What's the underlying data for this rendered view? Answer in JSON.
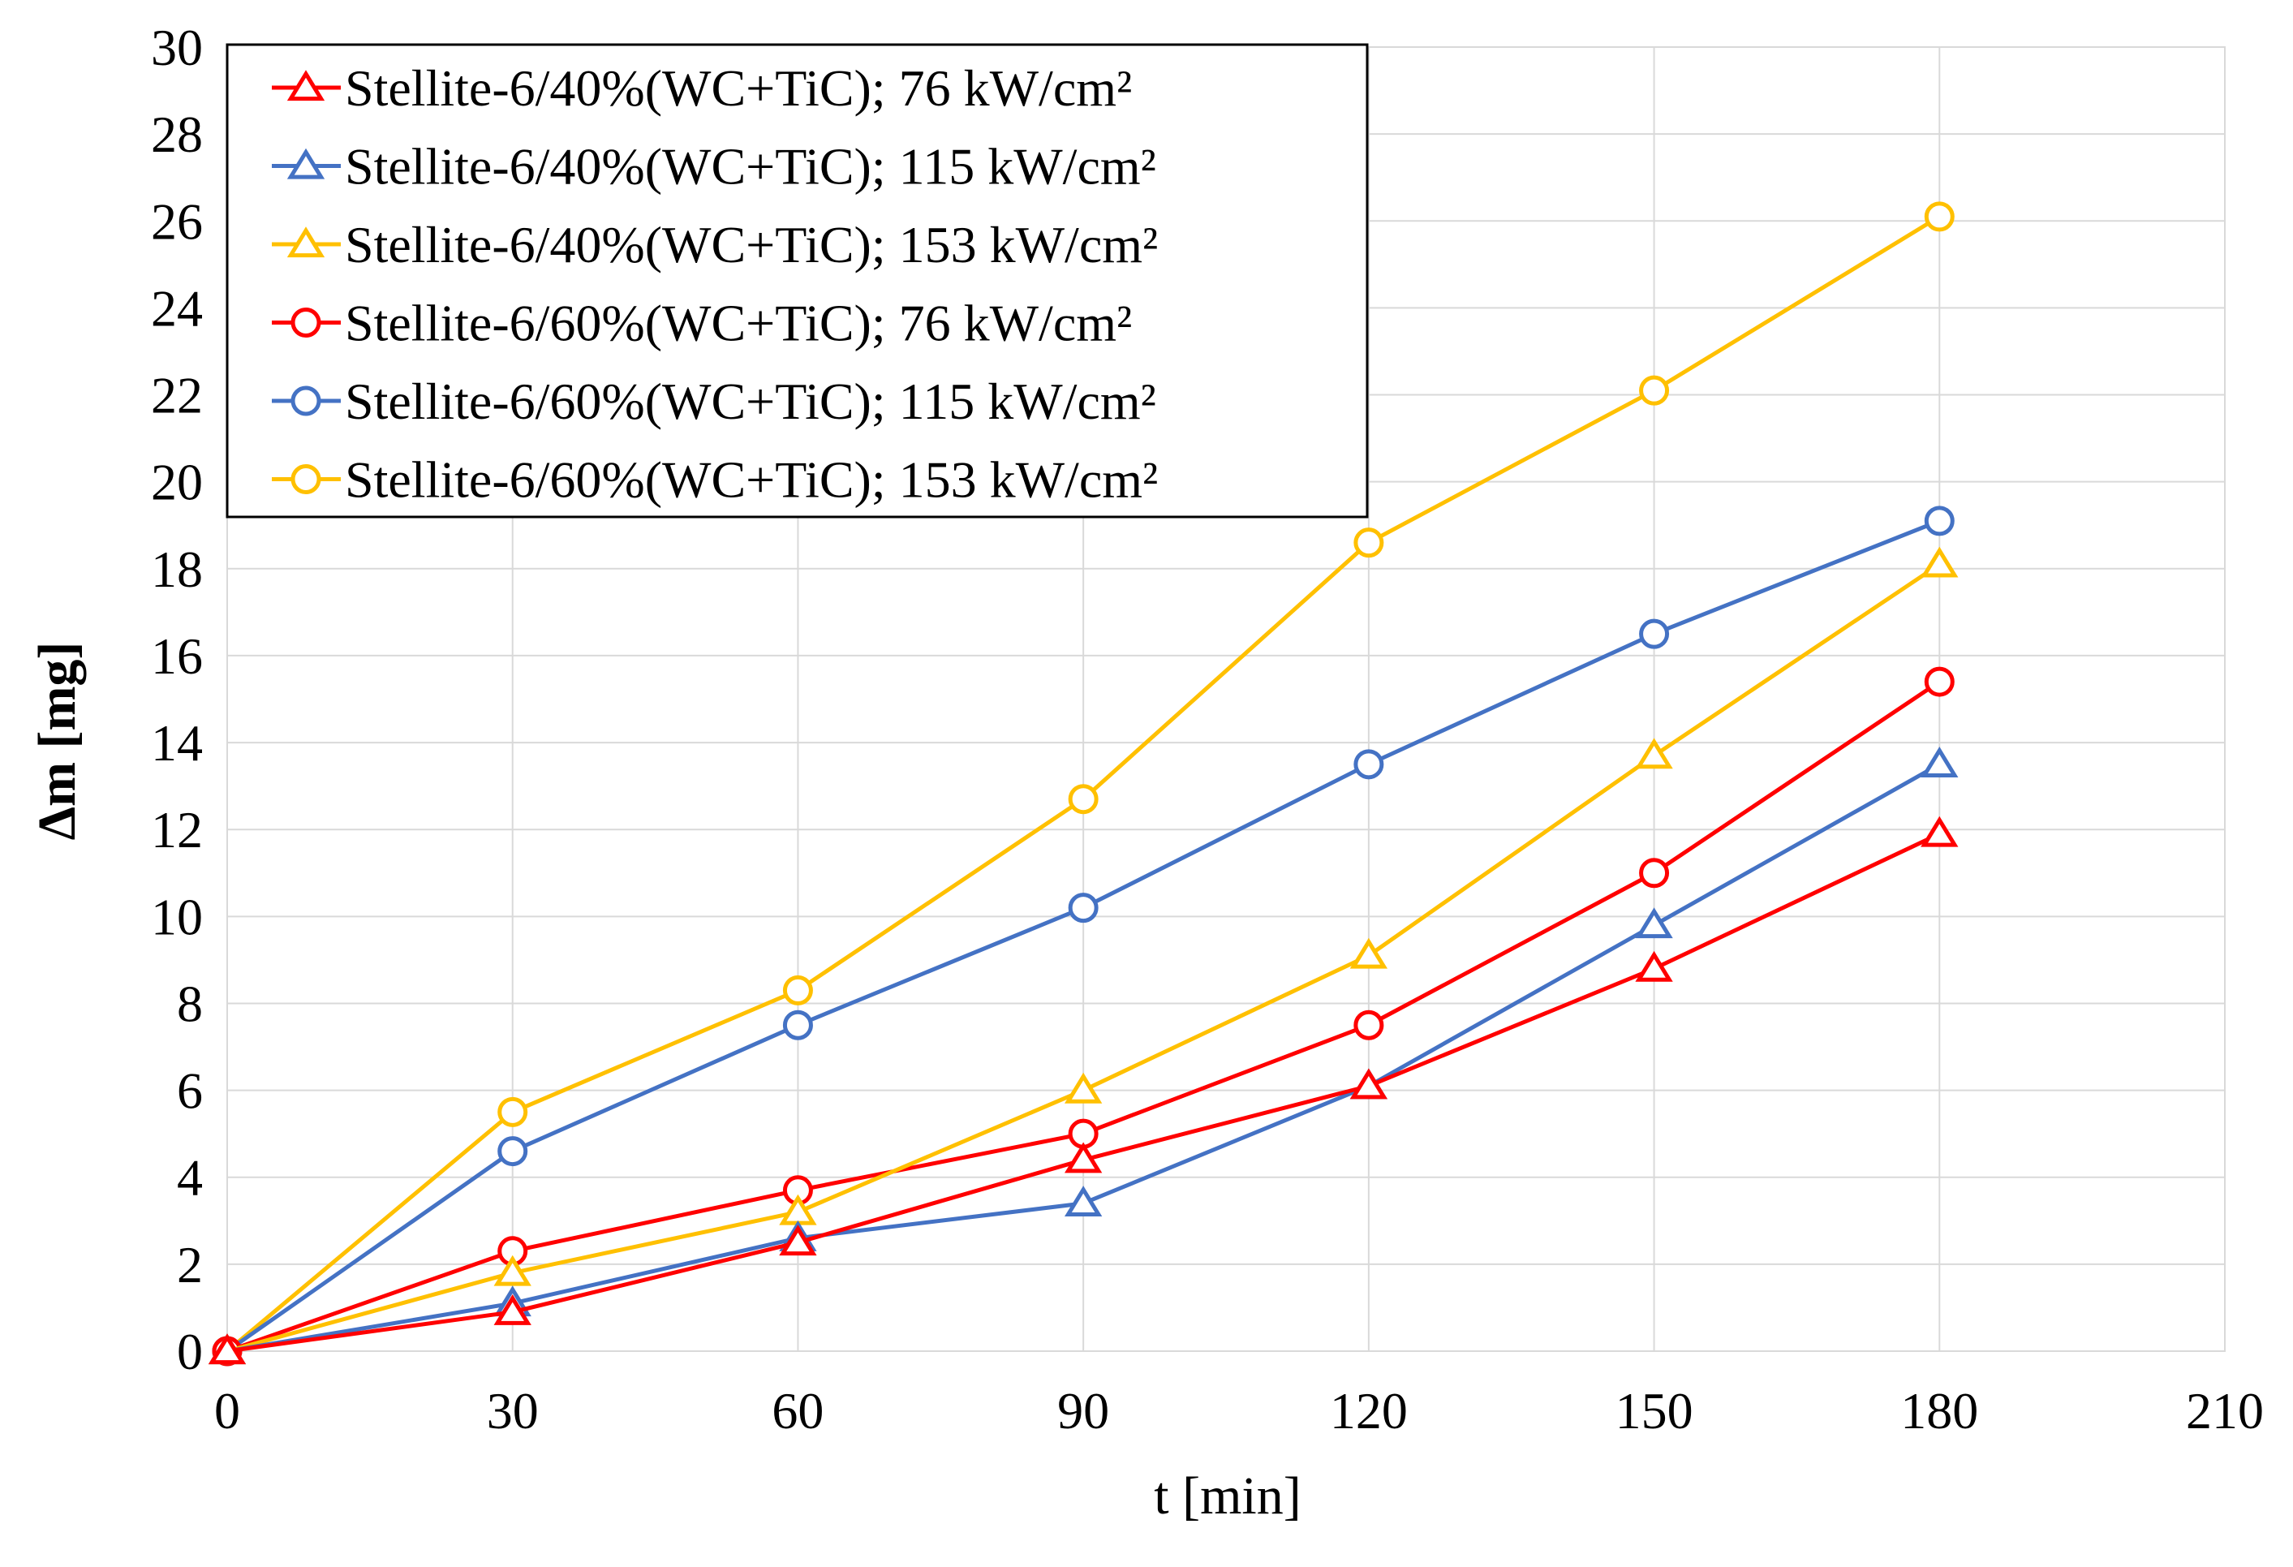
{
  "chart_data": {
    "type": "line",
    "title": "",
    "xlabel": "t [min]",
    "ylabel": "Δm [mg]",
    "xlim": [
      0,
      210
    ],
    "ylim": [
      0,
      30
    ],
    "x_ticks": [
      0,
      30,
      60,
      90,
      120,
      150,
      180,
      210
    ],
    "y_ticks": [
      0,
      2,
      4,
      6,
      8,
      10,
      12,
      14,
      16,
      18,
      20,
      22,
      24,
      26,
      28,
      30
    ],
    "grid": true,
    "legend_position": "top-left",
    "x": [
      0,
      30,
      60,
      90,
      120,
      150,
      180
    ],
    "series": [
      {
        "name": "Stellite-6/40%(WC+TiC); 76 kW/cm²",
        "color": "#ff0000",
        "marker": "triangle",
        "values": [
          0,
          0.9,
          2.5,
          4.4,
          6.1,
          8.8,
          11.9
        ]
      },
      {
        "name": "Stellite-6/40%(WC+TiC); 115 kW/cm²",
        "color": "#4472c4",
        "marker": "triangle",
        "values": [
          0,
          1.1,
          2.6,
          3.4,
          6.1,
          9.8,
          13.5
        ]
      },
      {
        "name": "Stellite-6/40%(WC+TiC); 153 kW/cm²",
        "color": "#ffc000",
        "marker": "triangle",
        "values": [
          0,
          1.8,
          3.2,
          6.0,
          9.1,
          13.7,
          18.1
        ]
      },
      {
        "name": "Stellite-6/60%(WC+TiC); 76 kW/cm²",
        "color": "#ff0000",
        "marker": "circle",
        "values": [
          0,
          2.3,
          3.7,
          5.0,
          7.5,
          11.0,
          15.4
        ]
      },
      {
        "name": "Stellite-6/60%(WC+TiC); 115 kW/cm²",
        "color": "#4472c4",
        "marker": "circle",
        "values": [
          0,
          4.6,
          7.5,
          10.2,
          13.5,
          16.5,
          19.1
        ]
      },
      {
        "name": "Stellite-6/60%(WC+TiC); 153 kW/cm²",
        "color": "#ffc000",
        "marker": "circle",
        "values": [
          0,
          5.5,
          8.3,
          12.7,
          18.6,
          22.1,
          26.1
        ]
      }
    ]
  }
}
